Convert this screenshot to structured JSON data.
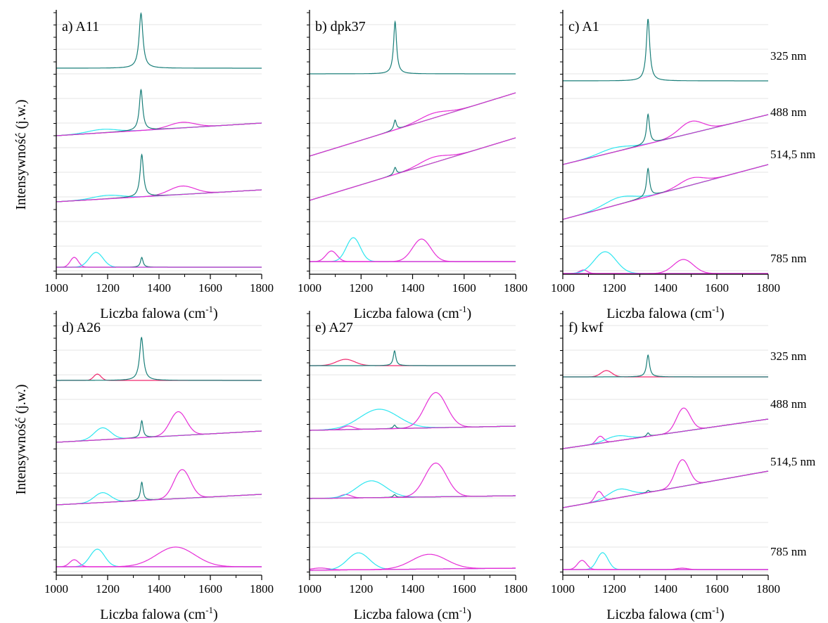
{
  "figure": {
    "ylabel": "Intensywność (j.w.)",
    "xlabel": "Liczba falowa (cm",
    "xlabel_sup": "-1",
    "xlabel_close": ")",
    "wavelength_labels_top": [
      "325 nm",
      "488 nm",
      "514,5 nm",
      "785 nm"
    ],
    "wavelength_labels_bottom": [
      "325 nm",
      "488 nm",
      "514,5 nm",
      "785 nm"
    ]
  },
  "colors": {
    "teal": "#1a7f7a",
    "cyan": "#2ee6f0",
    "magenta": "#e62fd7",
    "pink": "#f0286e",
    "axis": "#000000",
    "grid": "#e6e6e6"
  },
  "chart_data": [
    {
      "type": "line",
      "panel": "a) A11",
      "xlim": [
        1000,
        1800
      ],
      "xticks": [
        1000,
        1200,
        1400,
        1600,
        1800
      ],
      "grid": true,
      "spectra": [
        {
          "level": 1,
          "base": [
            97,
            97
          ],
          "peaks": [
            {
              "c": 1330,
              "h": 78,
              "w": 9,
              "color": "teal"
            }
          ],
          "fits": []
        },
        {
          "level": 2,
          "base": [
            193,
            175
          ],
          "peaks": [
            {
              "c": 1330,
              "h": 58,
              "w": 8,
              "color": "teal"
            }
          ],
          "fits": [
            {
              "c": 1180,
              "h": 5,
              "w": 80,
              "color": "cyan"
            },
            {
              "c": 1490,
              "h": 8,
              "w": 70,
              "color": "magenta"
            }
          ]
        },
        {
          "level": 3,
          "base": [
            287,
            270
          ],
          "peaks": [
            {
              "c": 1333,
              "h": 60,
              "w": 8,
              "color": "teal"
            }
          ],
          "fits": [
            {
              "c": 1200,
              "h": 5,
              "w": 80,
              "color": "cyan"
            },
            {
              "c": 1490,
              "h": 12,
              "w": 70,
              "color": "magenta"
            }
          ]
        },
        {
          "level": 4,
          "base": [
            380,
            380
          ],
          "peaks": [
            {
              "c": 1333,
              "h": 14,
              "w": 6,
              "color": "teal"
            }
          ],
          "fits": [
            {
              "c": 1070,
              "h": 14,
              "w": 22,
              "color": "magenta"
            },
            {
              "c": 1155,
              "h": 21,
              "w": 38,
              "color": "cyan"
            }
          ]
        }
      ]
    },
    {
      "type": "line",
      "panel": "b) dpk37",
      "xlim": [
        1000,
        1800
      ],
      "xticks": [
        1000,
        1200,
        1400,
        1600,
        1800
      ],
      "grid": true,
      "spectra": [
        {
          "level": 1,
          "base": [
            105,
            105
          ],
          "peaks": [
            {
              "c": 1332,
              "h": 74,
              "w": 7,
              "color": "teal"
            }
          ],
          "fits": [],
          "xrange": [
            1000,
            1800
          ]
        },
        {
          "level": 2,
          "base": [
            222,
            132
          ],
          "peaks": [
            {
              "c": 1332,
              "h": 14,
              "w": 6,
              "color": "teal"
            }
          ],
          "fits": [
            {
              "c": 1480,
              "h": 7,
              "w": 75,
              "color": "magenta"
            }
          ],
          "xrange": [
            1000,
            1800
          ]
        },
        {
          "level": 3,
          "base": [
            285,
            196
          ],
          "peaks": [
            {
              "c": 1332,
              "h": 10,
              "w": 6,
              "color": "teal"
            }
          ],
          "fits": [
            {
              "c": 1480,
              "h": 8,
              "w": 75,
              "color": "magenta"
            }
          ],
          "xrange": [
            1000,
            1800
          ]
        },
        {
          "level": 4,
          "base": [
            372,
            372
          ],
          "peaks": [],
          "fits": [
            {
              "c": 1085,
              "h": 15,
              "w": 30,
              "color": "magenta"
            },
            {
              "c": 1170,
              "h": 34,
              "w": 38,
              "color": "cyan"
            },
            {
              "c": 1435,
              "h": 32,
              "w": 50,
              "color": "magenta"
            }
          ],
          "xrange": [
            1000,
            1800
          ]
        }
      ]
    },
    {
      "type": "line",
      "panel": "c) A1",
      "xlim": [
        1000,
        1800
      ],
      "xticks": [
        1000,
        1200,
        1400,
        1600,
        1800
      ],
      "grid": true,
      "spectra": [
        {
          "level": 1,
          "base": [
            115,
            115
          ],
          "peaks": [
            {
              "c": 1332,
              "h": 88,
              "w": 8,
              "color": "teal"
            }
          ],
          "fits": []
        },
        {
          "level": 2,
          "base": [
            234,
            163
          ],
          "peaks": [
            {
              "c": 1332,
              "h": 42,
              "w": 7,
              "color": "teal"
            }
          ],
          "fits": [
            {
              "c": 1200,
              "h": 6,
              "w": 80,
              "color": "cyan"
            },
            {
              "c": 1500,
              "h": 17,
              "w": 65,
              "color": "magenta"
            }
          ]
        },
        {
          "level": 3,
          "base": [
            312,
            234
          ],
          "peaks": [
            {
              "c": 1332,
              "h": 40,
              "w": 7,
              "color": "teal"
            }
          ],
          "fits": [
            {
              "c": 1220,
              "h": 10,
              "w": 80,
              "color": "cyan"
            },
            {
              "c": 1500,
              "h": 10,
              "w": 65,
              "color": "magenta"
            }
          ]
        },
        {
          "level": 4,
          "base": [
            389,
            389
          ],
          "peaks": [],
          "fits": [
            {
              "c": 1080,
              "h": 5,
              "w": 22,
              "color": "magenta"
            },
            {
              "c": 1165,
              "h": 31,
              "w": 60,
              "color": "cyan"
            },
            {
              "c": 1470,
              "h": 20,
              "w": 55,
              "color": "magenta"
            }
          ]
        }
      ]
    },
    {
      "type": "line",
      "panel": "d) A26",
      "xlim": [
        1000,
        1800
      ],
      "xticks": [
        1000,
        1200,
        1400,
        1600,
        1800
      ],
      "grid": true,
      "spectra": [
        {
          "level": 1,
          "base": [
            541,
            541
          ],
          "peaks": [
            {
              "c": 1332,
              "h": 61,
              "w": 9,
              "color": "teal"
            }
          ],
          "fits": [
            {
              "c": 1160,
              "h": 9,
              "w": 20,
              "color": "pink"
            }
          ]
        },
        {
          "level": 2,
          "base": [
            629,
            613
          ],
          "peaks": [
            {
              "c": 1333,
              "h": 24,
              "w": 6,
              "color": "teal"
            }
          ],
          "fits": [
            {
              "c": 1180,
              "h": 17,
              "w": 45,
              "color": "cyan"
            },
            {
              "c": 1475,
              "h": 34,
              "w": 45,
              "color": "magenta"
            }
          ]
        },
        {
          "level": 3,
          "base": [
            718,
            703
          ],
          "peaks": [
            {
              "c": 1333,
              "h": 26,
              "w": 6,
              "color": "teal"
            }
          ],
          "fits": [
            {
              "c": 1180,
              "h": 14,
              "w": 45,
              "color": "cyan"
            },
            {
              "c": 1490,
              "h": 41,
              "w": 45,
              "color": "magenta"
            }
          ]
        },
        {
          "level": 4,
          "base": [
            806,
            806
          ],
          "peaks": [],
          "fits": [
            {
              "c": 1070,
              "h": 10,
              "w": 25,
              "color": "magenta"
            },
            {
              "c": 1160,
              "h": 25,
              "w": 40,
              "color": "cyan"
            },
            {
              "c": 1465,
              "h": 28,
              "w": 105,
              "color": "magenta"
            }
          ]
        }
      ]
    },
    {
      "type": "line",
      "panel": "e) A27",
      "xlim": [
        1000,
        1800
      ],
      "xticks": [
        1000,
        1200,
        1400,
        1600,
        1800
      ],
      "grid": true,
      "spectra": [
        {
          "level": 1,
          "base": [
            520,
            520
          ],
          "peaks": [
            {
              "c": 1330,
              "h": 21,
              "w": 6,
              "color": "teal"
            }
          ],
          "fits": [
            {
              "c": 1140,
              "h": 9,
              "w": 50,
              "color": "pink"
            }
          ]
        },
        {
          "level": 2,
          "base": [
            612,
            606
          ],
          "peaks": [
            {
              "c": 1330,
              "h": 5,
              "w": 6,
              "color": "teal"
            }
          ],
          "fits": [
            {
              "c": 1150,
              "h": 5,
              "w": 30,
              "color": "magenta"
            },
            {
              "c": 1270,
              "h": 28,
              "w": 105,
              "color": "cyan"
            },
            {
              "c": 1490,
              "h": 50,
              "w": 60,
              "color": "magenta"
            }
          ]
        },
        {
          "level": 3,
          "base": [
            709,
            705
          ],
          "peaks": [
            {
              "c": 1330,
              "h": 4,
              "w": 6,
              "color": "teal"
            }
          ],
          "fits": [
            {
              "c": 1140,
              "h": 5,
              "w": 30,
              "color": "magenta"
            },
            {
              "c": 1240,
              "h": 24,
              "w": 80,
              "color": "cyan"
            },
            {
              "c": 1490,
              "h": 48,
              "w": 60,
              "color": "magenta"
            }
          ]
        },
        {
          "level": 4,
          "base": [
            811,
            808
          ],
          "peaks": [],
          "fits": [
            {
              "c": 1040,
              "h": 3,
              "w": 50,
              "color": "magenta"
            },
            {
              "c": 1190,
              "h": 24,
              "w": 60,
              "color": "cyan"
            },
            {
              "c": 1465,
              "h": 21,
              "w": 95,
              "color": "magenta"
            }
          ]
        }
      ]
    },
    {
      "type": "line",
      "panel": "f) kwf",
      "xlim": [
        1000,
        1800
      ],
      "xticks": [
        1000,
        1200,
        1400,
        1600,
        1800
      ],
      "grid": true,
      "spectra": [
        {
          "level": 1,
          "base": [
            536,
            536
          ],
          "peaks": [
            {
              "c": 1332,
              "h": 31,
              "w": 7,
              "color": "teal"
            }
          ],
          "fits": [
            {
              "c": 1170,
              "h": 9,
              "w": 30,
              "color": "pink"
            }
          ]
        },
        {
          "level": 2,
          "base": [
            638,
            596
          ],
          "peaks": [
            {
              "c": 1332,
              "h": 5,
              "w": 6,
              "color": "teal"
            }
          ],
          "fits": [
            {
              "c": 1145,
              "h": 10,
              "w": 20,
              "color": "magenta"
            },
            {
              "c": 1210,
              "h": 7,
              "w": 60,
              "color": "cyan"
            },
            {
              "c": 1470,
              "h": 33,
              "w": 38,
              "color": "magenta"
            }
          ]
        },
        {
          "level": 3,
          "base": [
            722,
            670
          ],
          "peaks": [
            {
              "c": 1332,
              "h": 3,
              "w": 6,
              "color": "teal"
            }
          ],
          "fits": [
            {
              "c": 1140,
              "h": 14,
              "w": 20,
              "color": "magenta"
            },
            {
              "c": 1220,
              "h": 12,
              "w": 60,
              "color": "cyan"
            },
            {
              "c": 1465,
              "h": 38,
              "w": 38,
              "color": "magenta"
            }
          ]
        },
        {
          "level": 4,
          "base": [
            810,
            810
          ],
          "peaks": [],
          "fits": [
            {
              "c": 1075,
              "h": 13,
              "w": 25,
              "color": "magenta"
            },
            {
              "c": 1155,
              "h": 24,
              "w": 30,
              "color": "cyan"
            },
            {
              "c": 1465,
              "h": 2,
              "w": 30,
              "color": "magenta"
            }
          ]
        }
      ]
    }
  ]
}
